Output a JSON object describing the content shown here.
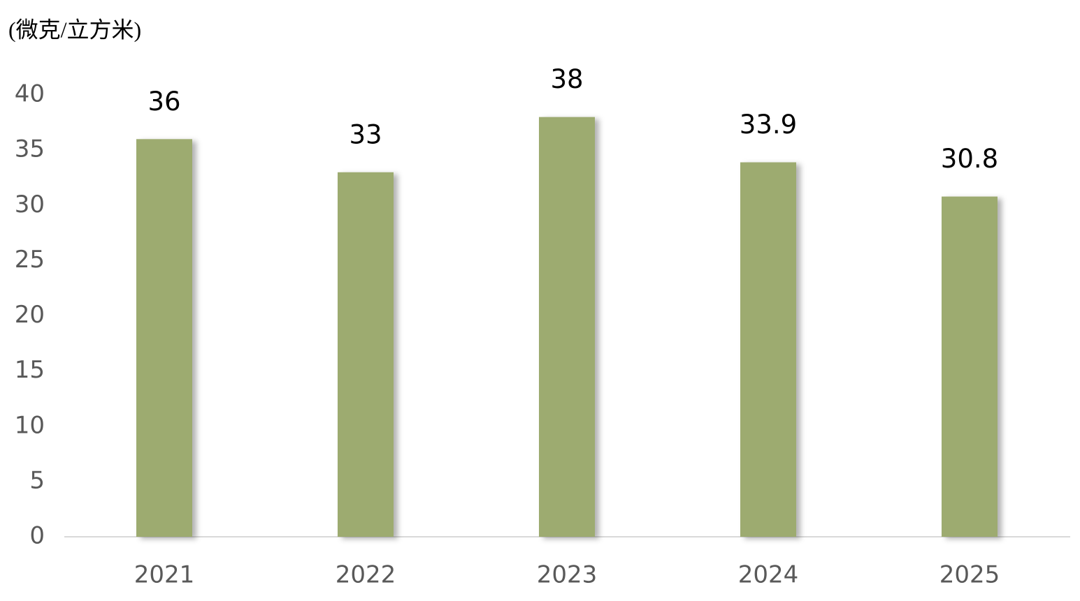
{
  "chart_data": {
    "type": "bar",
    "y_axis_label": "(微克/立方米)",
    "categories": [
      "2021",
      "2022",
      "2023",
      "2024",
      "2025"
    ],
    "values": [
      36,
      33,
      38,
      33.9,
      30.8
    ],
    "color": "#9dab6f",
    "ylim": [
      0,
      40
    ],
    "yticks": [
      0,
      5,
      10,
      15,
      20,
      25,
      30,
      35,
      40
    ],
    "grid": false
  }
}
